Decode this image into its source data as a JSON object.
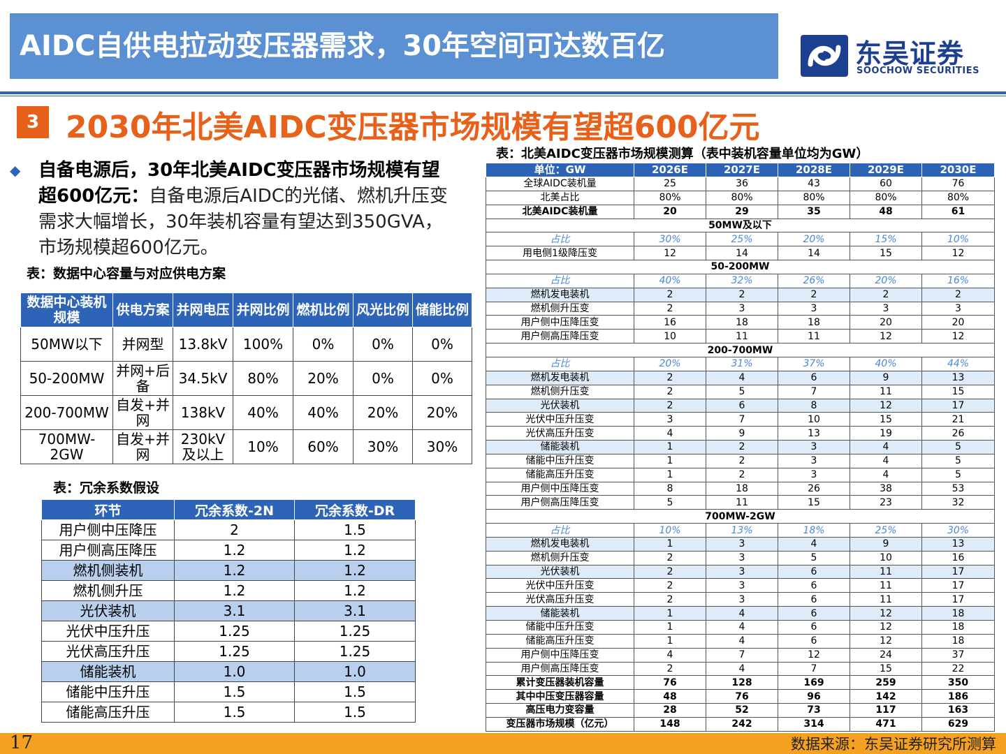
{
  "header": {
    "title": "AIDC自供电拉动变压器需求，30年空间可达数百亿",
    "logo_cn": "东吴证券",
    "logo_en": "SOOCHOW SECURITIES"
  },
  "section": {
    "number": "3",
    "title": "2030年北美AIDC变压器市场规模有望超600亿元"
  },
  "summary": {
    "bold": "自备电源后，30年北美AIDC变压器市场规模有望超600亿元：",
    "text": "自备电源后AIDC的光储、燃机升压变需求大幅增长，30年装机容量有望达到350GVA，市场规模超600亿元。"
  },
  "table_supply": {
    "caption": "表：数据中心容量与对应供电方案",
    "headers": [
      "数据中心装机规模",
      "供电方案",
      "并网电压",
      "并网比例",
      "燃机比例",
      "风光比例",
      "储能比例"
    ],
    "rows": [
      [
        "50MW以下",
        "并网型",
        "13.8kV",
        "100%",
        "0%",
        "0%",
        "0%"
      ],
      [
        "50-200MW",
        "并网+后备",
        "34.5kV",
        "80%",
        "20%",
        "0%",
        "0%"
      ],
      [
        "200-700MW",
        "自发+并网",
        "138kV",
        "40%",
        "40%",
        "20%",
        "20%"
      ],
      [
        "700MW-2GW",
        "自发+并网",
        "230kV及以上",
        "10%",
        "60%",
        "30%",
        "30%"
      ]
    ]
  },
  "table_redundancy": {
    "caption": "表：冗余系数假设",
    "headers": [
      "环节",
      "冗余系数-2N",
      "冗余系数-DR"
    ],
    "rows": [
      [
        "用户侧中压降压",
        "2",
        "1.5"
      ],
      [
        "用户侧高压降压",
        "1.2",
        "1.2"
      ],
      [
        "燃机侧装机",
        "1.2",
        "1.2"
      ],
      [
        "燃机侧升压",
        "1.2",
        "1.2"
      ],
      [
        "光伏装机",
        "3.1",
        "3.1"
      ],
      [
        "光伏中压升压",
        "1.25",
        "1.25"
      ],
      [
        "光伏高压升压",
        "1.25",
        "1.25"
      ],
      [
        "储能装机",
        "1.0",
        "1.0"
      ],
      [
        "储能中压升压",
        "1.5",
        "1.5"
      ],
      [
        "储能高压升压",
        "1.5",
        "1.5"
      ]
    ],
    "highlight_rows": [
      2,
      4,
      7
    ]
  },
  "table_market": {
    "caption": "表：北美AIDC变压器市场规模测算（表中装机容量单位均为GW）",
    "headers": [
      "单位：GW",
      "2026E",
      "2027E",
      "2028E",
      "2029E",
      "2030E"
    ],
    "rows": [
      {
        "type": "normal",
        "cells": [
          "全球AIDC装机量",
          "25",
          "36",
          "43",
          "60",
          "76"
        ]
      },
      {
        "type": "normal",
        "cells": [
          "北美占比",
          "80%",
          "80%",
          "80%",
          "80%",
          "80%"
        ]
      },
      {
        "type": "bold",
        "cells": [
          "北美AIDC装机量",
          "20",
          "29",
          "35",
          "48",
          "61"
        ]
      },
      {
        "type": "section",
        "label": "50MW及以下"
      },
      {
        "type": "share",
        "cells": [
          "占比",
          "30%",
          "25%",
          "20%",
          "15%",
          "10%"
        ]
      },
      {
        "type": "normal",
        "cells": [
          "用电侧1级降压变",
          "12",
          "14",
          "14",
          "15",
          "12"
        ]
      },
      {
        "type": "section",
        "label": "50-200MW"
      },
      {
        "type": "share",
        "cells": [
          "占比",
          "40%",
          "32%",
          "26%",
          "20%",
          "16%"
        ]
      },
      {
        "type": "hl",
        "cells": [
          "燃机发电装机",
          "2",
          "2",
          "2",
          "2",
          "2"
        ]
      },
      {
        "type": "normal",
        "cells": [
          "燃机侧升压变",
          "2",
          "3",
          "3",
          "3",
          "3"
        ]
      },
      {
        "type": "normal",
        "cells": [
          "用户侧中压降压变",
          "16",
          "18",
          "18",
          "20",
          "20"
        ]
      },
      {
        "type": "normal",
        "cells": [
          "用户侧高压降压变",
          "10",
          "11",
          "11",
          "12",
          "12"
        ]
      },
      {
        "type": "section",
        "label": "200-700MW"
      },
      {
        "type": "share",
        "cells": [
          "占比",
          "20%",
          "31%",
          "37%",
          "40%",
          "44%"
        ]
      },
      {
        "type": "hl",
        "cells": [
          "燃机发电装机",
          "2",
          "4",
          "6",
          "9",
          "13"
        ]
      },
      {
        "type": "normal",
        "cells": [
          "燃机侧升压变",
          "2",
          "5",
          "7",
          "11",
          "15"
        ]
      },
      {
        "type": "hl",
        "cells": [
          "光伏装机",
          "2",
          "6",
          "8",
          "12",
          "17"
        ]
      },
      {
        "type": "normal",
        "cells": [
          "光伏中压升压变",
          "3",
          "7",
          "10",
          "15",
          "21"
        ]
      },
      {
        "type": "normal",
        "cells": [
          "光伏高压升压变",
          "4",
          "9",
          "13",
          "19",
          "26"
        ]
      },
      {
        "type": "hl",
        "cells": [
          "储能装机",
          "1",
          "2",
          "3",
          "4",
          "5"
        ]
      },
      {
        "type": "normal",
        "cells": [
          "储能中压升压变",
          "1",
          "2",
          "3",
          "4",
          "5"
        ]
      },
      {
        "type": "normal",
        "cells": [
          "储能高压升压变",
          "1",
          "2",
          "3",
          "4",
          "5"
        ]
      },
      {
        "type": "normal",
        "cells": [
          "用户侧中压降压变",
          "8",
          "18",
          "26",
          "38",
          "53"
        ]
      },
      {
        "type": "normal",
        "cells": [
          "用户侧高压降压变",
          "5",
          "11",
          "15",
          "23",
          "32"
        ]
      },
      {
        "type": "section",
        "label": "700MW-2GW"
      },
      {
        "type": "share",
        "cells": [
          "占比",
          "10%",
          "13%",
          "18%",
          "25%",
          "30%"
        ]
      },
      {
        "type": "hl",
        "cells": [
          "燃机发电装机",
          "1",
          "3",
          "4",
          "9",
          "13"
        ]
      },
      {
        "type": "normal",
        "cells": [
          "燃机侧升压变",
          "2",
          "3",
          "5",
          "10",
          "16"
        ]
      },
      {
        "type": "hl",
        "cells": [
          "光伏装机",
          "2",
          "3",
          "6",
          "11",
          "17"
        ]
      },
      {
        "type": "normal",
        "cells": [
          "光伏中压升压变",
          "2",
          "3",
          "6",
          "11",
          "17"
        ]
      },
      {
        "type": "normal",
        "cells": [
          "光伏高压升压变",
          "2",
          "3",
          "6",
          "11",
          "17"
        ]
      },
      {
        "type": "hl",
        "cells": [
          "储能装机",
          "1",
          "4",
          "6",
          "12",
          "18"
        ]
      },
      {
        "type": "normal",
        "cells": [
          "储能中压升压变",
          "1",
          "4",
          "6",
          "12",
          "18"
        ]
      },
      {
        "type": "normal",
        "cells": [
          "储能高压升压变",
          "1",
          "4",
          "6",
          "12",
          "18"
        ]
      },
      {
        "type": "normal",
        "cells": [
          "用户侧中压降压变",
          "4",
          "7",
          "12",
          "24",
          "37"
        ]
      },
      {
        "type": "normal",
        "cells": [
          "用户侧高压降压变",
          "2",
          "4",
          "7",
          "15",
          "22"
        ]
      },
      {
        "type": "bold",
        "cells": [
          "累计变压器装机容量",
          "76",
          "128",
          "169",
          "259",
          "350"
        ]
      },
      {
        "type": "bold",
        "cells": [
          "其中中压变压器容量",
          "48",
          "76",
          "96",
          "142",
          "186"
        ]
      },
      {
        "type": "bold",
        "cells": [
          "高压电力变容量",
          "28",
          "52",
          "73",
          "117",
          "163"
        ]
      },
      {
        "type": "bold",
        "cells": [
          "变压器市场规模（亿元）",
          "148",
          "242",
          "314",
          "471",
          "629"
        ]
      }
    ]
  },
  "footer": {
    "page_number": "17",
    "source": "数据来源：东吴证券研究所测算"
  },
  "colors": {
    "title_bar": "#5b90d2",
    "accent_orange": "#e8611a",
    "table_header": "#2d64b8",
    "highlight_row": "#b8d0ee",
    "bottom_bar": "#f4a020"
  }
}
